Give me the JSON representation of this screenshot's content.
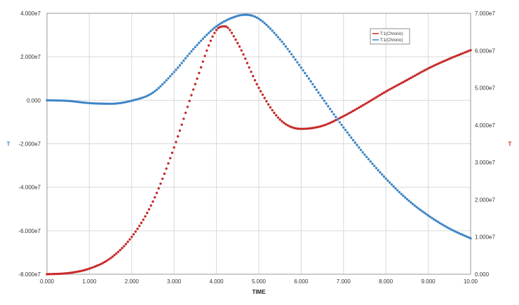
{
  "chart_data": {
    "type": "line",
    "xlabel": "TIME",
    "left_axis_label": "T",
    "right_axis_label": "T",
    "xlim": [
      0,
      10
    ],
    "ylim_left": [
      -80000000,
      40000000
    ],
    "ylim_right": [
      0,
      70000000
    ],
    "grid": true,
    "legend_position": "top-right",
    "x_ticks": [
      "0.000",
      "1.000",
      "2.000",
      "3.000",
      "4.000",
      "5.000",
      "6.000",
      "7.000",
      "8.000",
      "9.000",
      "10.00"
    ],
    "y_left_ticks": [
      {
        "value": 40000000,
        "label": "4.000e7"
      },
      {
        "value": 20000000,
        "label": "2.000e7"
      },
      {
        "value": 0,
        "label": "0.000"
      },
      {
        "value": -20000000,
        "label": "-2.000e7"
      },
      {
        "value": -40000000,
        "label": "-4.000e7"
      },
      {
        "value": -60000000,
        "label": "-6.000e7"
      },
      {
        "value": -80000000,
        "label": "-8.000e7"
      }
    ],
    "y_right_ticks": [
      {
        "value": 70000000,
        "label": "7.000e7"
      },
      {
        "value": 60000000,
        "label": "6.000e7"
      },
      {
        "value": 50000000,
        "label": "5.000e7"
      },
      {
        "value": 40000000,
        "label": "4.000e7"
      },
      {
        "value": 30000000,
        "label": "3.000e7"
      },
      {
        "value": 20000000,
        "label": "2.000e7"
      },
      {
        "value": 10000000,
        "label": "1.000e7"
      },
      {
        "value": 0,
        "label": "0.000"
      }
    ],
    "series": [
      {
        "name": "T:1(Chronic)",
        "color": "#c62828",
        "axis": "right",
        "x": [
          0,
          0.5,
          1,
          1.5,
          2,
          2.5,
          3,
          3.5,
          4,
          4.2,
          4.5,
          5,
          5.5,
          6,
          6.5,
          7,
          7.5,
          8,
          8.5,
          9,
          9.5,
          10
        ],
        "y": [
          0,
          300000,
          1500000,
          4300000,
          10000000,
          19500000,
          34000000,
          51000000,
          65500000,
          66500000,
          62000000,
          50000000,
          41500000,
          39000000,
          39800000,
          42400000,
          45600000,
          49000000,
          52100000,
          55200000,
          57800000,
          60100000
        ]
      },
      {
        "name": "T:1(Chronic)",
        "color": "#3d85c6",
        "axis": "left",
        "x": [
          0,
          0.5,
          1,
          1.5,
          2,
          2.5,
          3,
          3.5,
          4,
          4.5,
          4.7,
          5,
          5.5,
          6,
          6.5,
          7,
          7.5,
          8,
          8.5,
          9,
          9.5,
          10
        ],
        "y": [
          0,
          -300000,
          -1300000,
          -1600000,
          -200000,
          3500000,
          13000000,
          24500000,
          34000000,
          38800000,
          39300000,
          37500000,
          28000000,
          15000000,
          1000000,
          -12500000,
          -25000000,
          -36000000,
          -45500000,
          -53000000,
          -59000000,
          -63500000
        ]
      }
    ]
  }
}
